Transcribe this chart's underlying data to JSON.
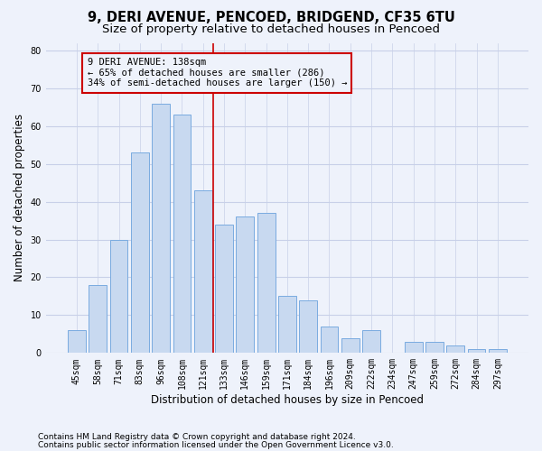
{
  "title_line1": "9, DERI AVENUE, PENCOED, BRIDGEND, CF35 6TU",
  "title_line2": "Size of property relative to detached houses in Pencoed",
  "xlabel": "Distribution of detached houses by size in Pencoed",
  "ylabel": "Number of detached properties",
  "footer_line1": "Contains HM Land Registry data © Crown copyright and database right 2024.",
  "footer_line2": "Contains public sector information licensed under the Open Government Licence v3.0.",
  "categories": [
    "45sqm",
    "58sqm",
    "71sqm",
    "83sqm",
    "96sqm",
    "108sqm",
    "121sqm",
    "133sqm",
    "146sqm",
    "159sqm",
    "171sqm",
    "184sqm",
    "196sqm",
    "209sqm",
    "222sqm",
    "234sqm",
    "247sqm",
    "259sqm",
    "272sqm",
    "284sqm",
    "297sqm"
  ],
  "values": [
    6,
    18,
    30,
    53,
    66,
    63,
    43,
    34,
    36,
    37,
    15,
    14,
    7,
    4,
    6,
    0,
    3,
    3,
    2,
    1,
    1
  ],
  "bar_color": "#c8d9f0",
  "bar_edge_color": "#7aabe0",
  "vline_color": "#cc0000",
  "annotation_box_edge_color": "#cc0000",
  "annotation_text_line1": "9 DERI AVENUE: 138sqm",
  "annotation_text_line2": "← 65% of detached houses are smaller (286)",
  "annotation_text_line3": "34% of semi-detached houses are larger (150) →",
  "ylim": [
    0,
    82
  ],
  "yticks": [
    0,
    10,
    20,
    30,
    40,
    50,
    60,
    70,
    80
  ],
  "background_color": "#eef2fb",
  "grid_color": "#c8d0e8",
  "title1_fontsize": 10.5,
  "title2_fontsize": 9.5,
  "ylabel_fontsize": 8.5,
  "xlabel_fontsize": 8.5,
  "tick_fontsize": 7,
  "annot_fontsize": 7.5,
  "footer_fontsize": 6.5,
  "vline_bin_index": 7
}
